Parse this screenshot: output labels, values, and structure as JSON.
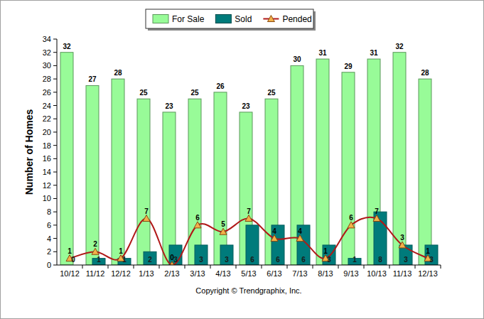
{
  "chart_data": {
    "type": "bar",
    "y_label": "Number of Homes",
    "caption": "Copyright © Trendgraphix, Inc.",
    "categories": [
      "10/12",
      "11/12",
      "12/12",
      "1/13",
      "2/13",
      "3/13",
      "4/13",
      "5/13",
      "6/13",
      "7/13",
      "8/13",
      "9/13",
      "10/13",
      "11/13",
      "12/13"
    ],
    "series": [
      {
        "name": "For Sale",
        "type": "bar",
        "color": "#98fb98",
        "values": [
          32,
          27,
          28,
          25,
          23,
          25,
          26,
          23,
          25,
          30,
          31,
          29,
          31,
          32,
          28
        ]
      },
      {
        "name": "Sold",
        "type": "bar",
        "color": "#007b7b",
        "values": [
          0,
          1,
          1,
          2,
          3,
          3,
          3,
          6,
          6,
          6,
          3,
          1,
          8,
          3,
          3
        ]
      },
      {
        "name": "Pended",
        "type": "line",
        "color": "#b01818",
        "marker": "triangle",
        "values": [
          1,
          2,
          1,
          7,
          0,
          6,
          5,
          7,
          4,
          4,
          1,
          6,
          7,
          3,
          1
        ]
      }
    ],
    "ylim": [
      0,
      34
    ],
    "yticks": [
      0,
      2,
      4,
      6,
      8,
      10,
      12,
      14,
      16,
      18,
      20,
      22,
      24,
      26,
      28,
      30,
      32,
      34
    ],
    "grid": false,
    "legend": "top",
    "data_labels": true
  }
}
